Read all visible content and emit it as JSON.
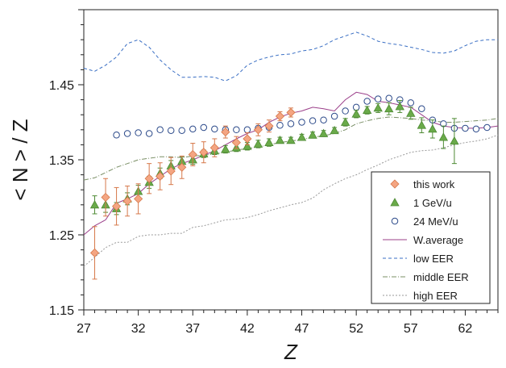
{
  "chart_data": {
    "type": "scatter",
    "title": "",
    "xlabel": "Z",
    "ylabel": "< N > / Z",
    "xlim": [
      27,
      65
    ],
    "ylim": [
      1.15,
      1.55
    ],
    "xticks": [
      27,
      32,
      37,
      42,
      47,
      52,
      57,
      62
    ],
    "yticks": [
      1.15,
      1.25,
      1.35,
      1.45
    ],
    "xtick_labels": [
      "27",
      "32",
      "37",
      "42",
      "47",
      "52",
      "57",
      "62"
    ],
    "ytick_labels": [
      "1.15",
      "1.25",
      "1.35",
      "1.45"
    ],
    "legend_position": "bottom-right",
    "series": [
      {
        "name": "this work",
        "kind": "points",
        "marker": "diamond",
        "color": "#f4a582",
        "edge": "#d6784a",
        "x": [
          28,
          29,
          30,
          31,
          32,
          33,
          34,
          35,
          36,
          37,
          38,
          39,
          40,
          41,
          42,
          43,
          44,
          45,
          46
        ],
        "y": [
          1.226,
          1.3,
          1.288,
          1.295,
          1.298,
          1.325,
          1.328,
          1.335,
          1.34,
          1.357,
          1.36,
          1.366,
          1.387,
          1.373,
          1.378,
          1.39,
          1.395,
          1.408,
          1.413
        ],
        "err": [
          0.035,
          0.025,
          0.025,
          0.02,
          0.02,
          0.02,
          0.018,
          0.018,
          0.015,
          0.015,
          0.014,
          0.012,
          0.008,
          0.008,
          0.008,
          0.008,
          0.008,
          0.006,
          0.006
        ]
      },
      {
        "name": "1 GeV/u",
        "kind": "points",
        "marker": "triangle",
        "color": "#6aaa4a",
        "edge": "#4d8a33",
        "x": [
          28,
          29,
          30,
          31,
          32,
          33,
          34,
          35,
          36,
          37,
          38,
          39,
          40,
          41,
          42,
          43,
          44,
          45,
          46,
          47,
          48,
          49,
          50,
          51,
          52,
          53,
          54,
          55,
          56,
          57,
          58,
          59,
          60,
          61
        ],
        "y": [
          1.29,
          1.29,
          1.285,
          1.298,
          1.308,
          1.32,
          1.332,
          1.342,
          1.348,
          1.35,
          1.358,
          1.362,
          1.364,
          1.366,
          1.368,
          1.371,
          1.373,
          1.376,
          1.376,
          1.38,
          1.383,
          1.385,
          1.389,
          1.4,
          1.411,
          1.416,
          1.419,
          1.418,
          1.421,
          1.412,
          1.396,
          1.391,
          1.38,
          1.375
        ],
        "err": [
          0.012,
          0.01,
          0.008,
          0.008,
          0.008,
          0.008,
          0.007,
          0.007,
          0.006,
          0.006,
          0.005,
          0.005,
          0.005,
          0.005,
          0.005,
          0.005,
          0.005,
          0.004,
          0.004,
          0.004,
          0.004,
          0.004,
          0.004,
          0.005,
          0.005,
          0.005,
          0.006,
          0.008,
          0.008,
          0.008,
          0.01,
          0.012,
          0.015,
          0.03
        ]
      },
      {
        "name": "24 MeV/u",
        "kind": "points",
        "marker": "circle",
        "color": "#ffffff",
        "edge": "#2c4a8a",
        "x": [
          30,
          31,
          32,
          33,
          34,
          35,
          36,
          37,
          38,
          39,
          40,
          41,
          42,
          43,
          44,
          45,
          46,
          47,
          48,
          49,
          50,
          51,
          52,
          53,
          54,
          55,
          56,
          57,
          58,
          59,
          60,
          61,
          62,
          63,
          64
        ],
        "y": [
          1.383,
          1.385,
          1.386,
          1.385,
          1.39,
          1.389,
          1.389,
          1.391,
          1.393,
          1.391,
          1.39,
          1.39,
          1.39,
          1.392,
          1.393,
          1.396,
          1.398,
          1.4,
          1.402,
          1.403,
          1.408,
          1.415,
          1.42,
          1.428,
          1.431,
          1.432,
          1.43,
          1.426,
          1.418,
          1.403,
          1.398,
          1.392,
          1.392,
          1.391,
          1.393
        ],
        "err": []
      },
      {
        "name": "W.average",
        "kind": "line",
        "dash": "",
        "color": "#9b3f8a",
        "x": [
          27,
          28,
          29,
          30,
          31,
          32,
          33,
          34,
          35,
          36,
          37,
          38,
          39,
          40,
          41,
          42,
          43,
          44,
          45,
          46,
          47,
          48,
          49,
          50,
          51,
          52,
          53,
          54,
          55,
          56,
          57,
          58,
          59,
          60,
          61,
          62,
          63,
          64,
          65
        ],
        "y": [
          1.25,
          1.262,
          1.27,
          1.292,
          1.298,
          1.305,
          1.318,
          1.328,
          1.338,
          1.345,
          1.35,
          1.356,
          1.362,
          1.37,
          1.378,
          1.385,
          1.39,
          1.4,
          1.407,
          1.412,
          1.415,
          1.42,
          1.418,
          1.415,
          1.43,
          1.44,
          1.437,
          1.428,
          1.426,
          1.423,
          1.42,
          1.41,
          1.4,
          1.395,
          1.393,
          1.392,
          1.392,
          1.393,
          1.395
        ]
      },
      {
        "name": "low EER",
        "kind": "line",
        "dash": "4,3",
        "color": "#3a6fc4",
        "x": [
          27,
          28,
          29,
          30,
          31,
          32,
          33,
          34,
          35,
          36,
          37,
          38,
          39,
          40,
          41,
          42,
          43,
          44,
          45,
          46,
          47,
          48,
          49,
          50,
          51,
          52,
          53,
          54,
          55,
          56,
          57,
          58,
          59,
          60,
          61,
          62,
          63,
          64,
          65
        ],
        "y": [
          1.472,
          1.468,
          1.476,
          1.487,
          1.505,
          1.51,
          1.5,
          1.483,
          1.47,
          1.46,
          1.46,
          1.461,
          1.46,
          1.455,
          1.462,
          1.476,
          1.483,
          1.487,
          1.49,
          1.491,
          1.495,
          1.497,
          1.502,
          1.51,
          1.515,
          1.52,
          1.515,
          1.508,
          1.505,
          1.503,
          1.5,
          1.497,
          1.493,
          1.492,
          1.495,
          1.502,
          1.508,
          1.51,
          1.51
        ]
      },
      {
        "name": "middle EER",
        "kind": "line",
        "dash": "6,2,1,2",
        "color": "#7a8f66",
        "x": [
          27,
          28,
          29,
          30,
          31,
          32,
          33,
          34,
          35,
          36,
          37,
          38,
          39,
          40,
          41,
          42,
          43,
          44,
          45,
          46,
          47,
          48,
          49,
          50,
          51,
          52,
          53,
          54,
          55,
          56,
          57,
          58,
          59,
          60,
          61,
          62,
          63,
          64,
          65
        ],
        "y": [
          1.323,
          1.326,
          1.333,
          1.34,
          1.345,
          1.35,
          1.352,
          1.354,
          1.354,
          1.353,
          1.355,
          1.356,
          1.358,
          1.36,
          1.363,
          1.365,
          1.367,
          1.37,
          1.373,
          1.375,
          1.377,
          1.38,
          1.382,
          1.385,
          1.39,
          1.398,
          1.402,
          1.405,
          1.407,
          1.406,
          1.405,
          1.403,
          1.402,
          1.4,
          1.4,
          1.401,
          1.402,
          1.403,
          1.405
        ]
      },
      {
        "name": "high EER",
        "kind": "line",
        "dash": "2,2",
        "color": "#9a9a9a",
        "x": [
          27,
          28,
          29,
          30,
          31,
          32,
          33,
          34,
          35,
          36,
          37,
          38,
          39,
          40,
          41,
          42,
          43,
          44,
          45,
          46,
          47,
          48,
          49,
          50,
          51,
          52,
          53,
          54,
          55,
          56,
          57,
          58,
          59,
          60,
          61,
          62,
          63,
          64,
          65
        ],
        "y": [
          1.208,
          1.22,
          1.233,
          1.24,
          1.24,
          1.248,
          1.25,
          1.25,
          1.252,
          1.252,
          1.26,
          1.262,
          1.266,
          1.27,
          1.271,
          1.273,
          1.277,
          1.282,
          1.286,
          1.29,
          1.293,
          1.299,
          1.31,
          1.318,
          1.325,
          1.33,
          1.337,
          1.343,
          1.35,
          1.355,
          1.36,
          1.362,
          1.363,
          1.366,
          1.37,
          1.373,
          1.375,
          1.378,
          1.383
        ]
      }
    ]
  }
}
